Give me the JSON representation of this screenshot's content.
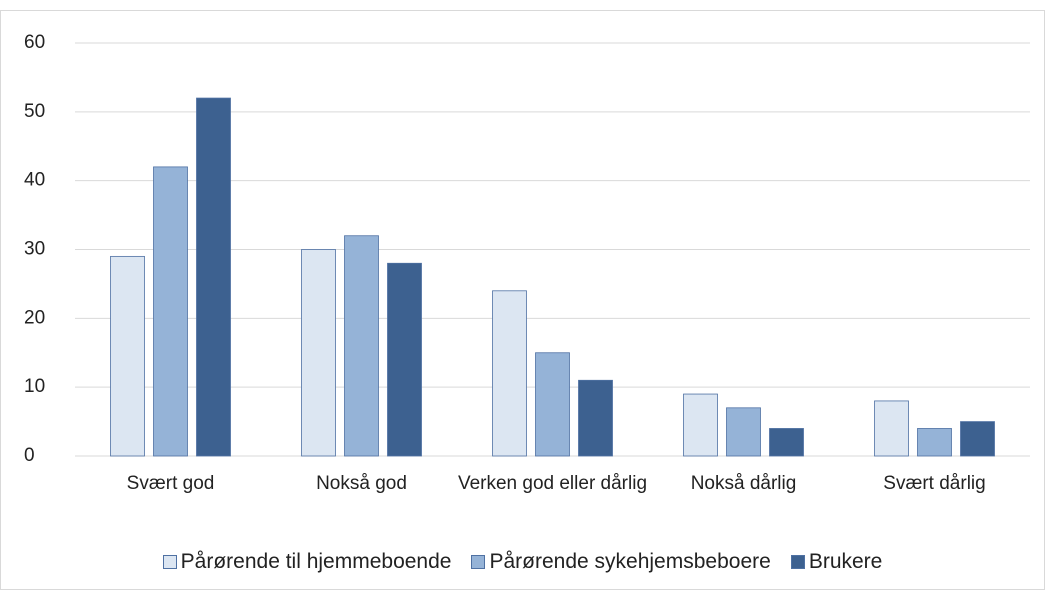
{
  "chart_data": {
    "type": "bar",
    "categories": [
      "Svært god",
      "Nokså god",
      "Verken god eller dårlig",
      "Nokså dårlig",
      "Svært dårlig"
    ],
    "series": [
      {
        "name": "Pårørende til hjemmeboende",
        "color": "#dce6f2",
        "values": [
          29,
          30,
          24,
          9,
          8
        ]
      },
      {
        "name": "Pårørende sykehjemsbeboere",
        "color": "#95b3d7",
        "values": [
          42,
          32,
          15,
          7,
          4
        ]
      },
      {
        "name": "Brukere",
        "color": "#3d6190",
        "values": [
          52,
          28,
          11,
          4,
          5
        ]
      }
    ],
    "ylim": [
      0,
      60
    ],
    "yticks": [
      0,
      10,
      20,
      30,
      40,
      50,
      60
    ],
    "grid": true,
    "legend": "bottom"
  }
}
